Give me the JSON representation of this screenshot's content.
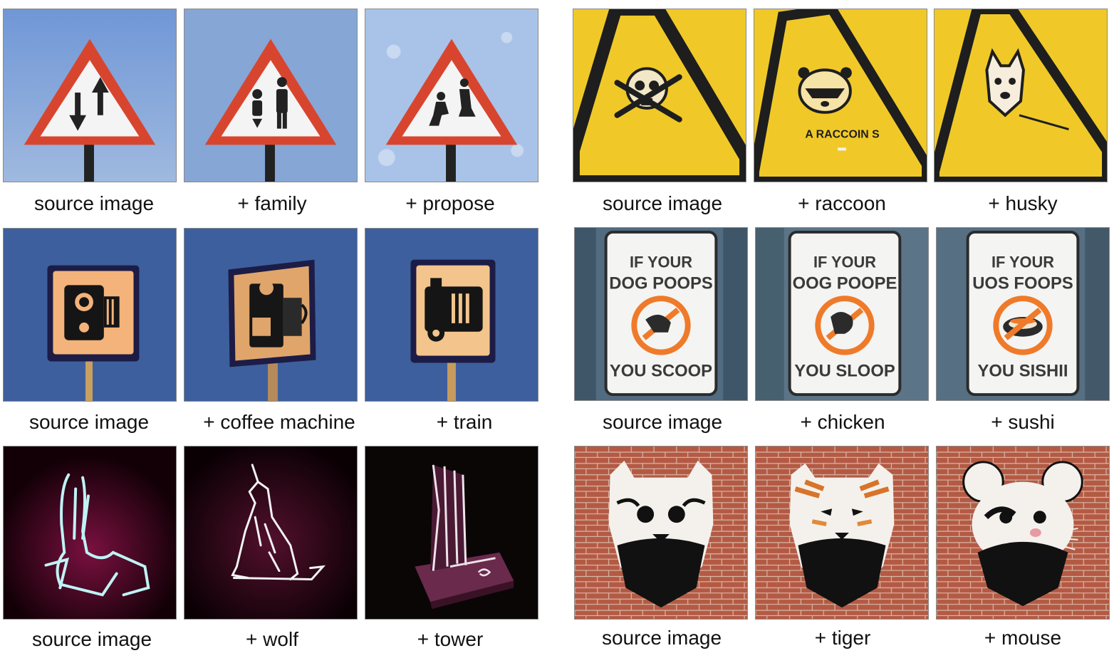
{
  "left_panel": {
    "rows": [
      {
        "theme": "triangle-warning-sign",
        "captions": [
          "source image",
          "+ family",
          "+ propose"
        ]
      },
      {
        "theme": "square-speed-camera-sign",
        "captions": [
          "source image",
          "+ coffee machine",
          "+ train"
        ]
      },
      {
        "theme": "neon-outline",
        "captions": [
          "source image",
          "+ wolf",
          "+ tower"
        ]
      }
    ]
  },
  "right_panel": {
    "rows": [
      {
        "theme": "yellow-hazard-sign",
        "captions": [
          "source image",
          "+ raccoon",
          "+ husky"
        ],
        "sign_text": {
          "raccoon": "A RACCOIN S"
        }
      },
      {
        "theme": "dog-poop-sign",
        "captions": [
          "source image",
          "+ chicken",
          "+ sushi"
        ],
        "sign_text": {
          "source": {
            "top1": "IF YOUR",
            "top2": "DOG POOPS",
            "bottom": "YOU SCOOP"
          },
          "chicken": {
            "top1": "IF YOUR",
            "top2": "OOG POOPE",
            "bottom": "YOU SLOOP"
          },
          "sushi": {
            "top1": "IF YOUR",
            "top2": "UOS FOOPS",
            "bottom": "YOU SISHII"
          }
        }
      },
      {
        "theme": "brick-wall-graffiti",
        "captions": [
          "source image",
          "+ tiger",
          "+ mouse"
        ]
      }
    ]
  },
  "colors": {
    "sky": "#7fa3d8",
    "sign_red": "#d8452f",
    "sign_blue_bg": "#3d5f9e",
    "sign_orange": "#f3b37a",
    "neon_pink": "#e02a7a",
    "neon_cyan": "#bff3f5",
    "hazard_yellow": "#f0c928",
    "poop_orange": "#ef7a2a",
    "brick": "#b45a44"
  }
}
